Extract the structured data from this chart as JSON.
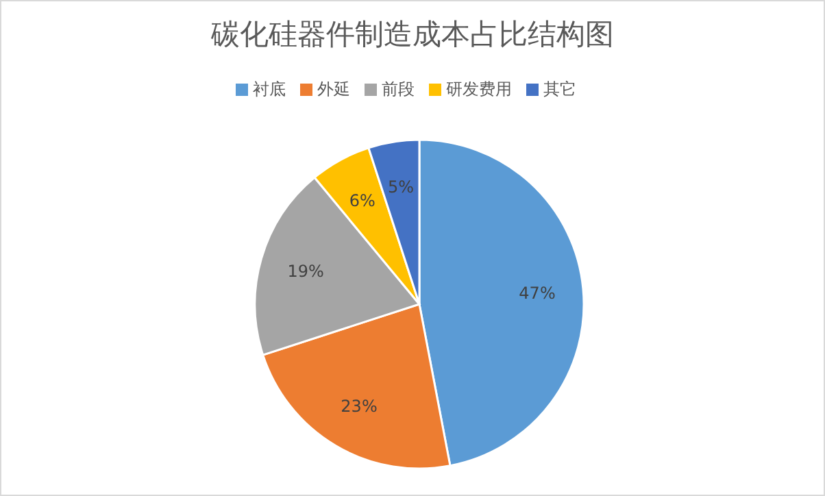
{
  "chart_data": {
    "type": "pie",
    "title": "碳化硅器件制造成本占比结构图",
    "categories": [
      "衬底",
      "外延",
      "前段",
      "研发费用",
      "其它"
    ],
    "values": [
      47,
      23,
      19,
      6,
      5
    ],
    "colors": [
      "#5b9bd5",
      "#ed7d31",
      "#a5a5a5",
      "#ffc000",
      "#4472c4"
    ],
    "value_labels": [
      "47%",
      "23%",
      "19%",
      "6%",
      "5%"
    ],
    "legend": "top"
  }
}
